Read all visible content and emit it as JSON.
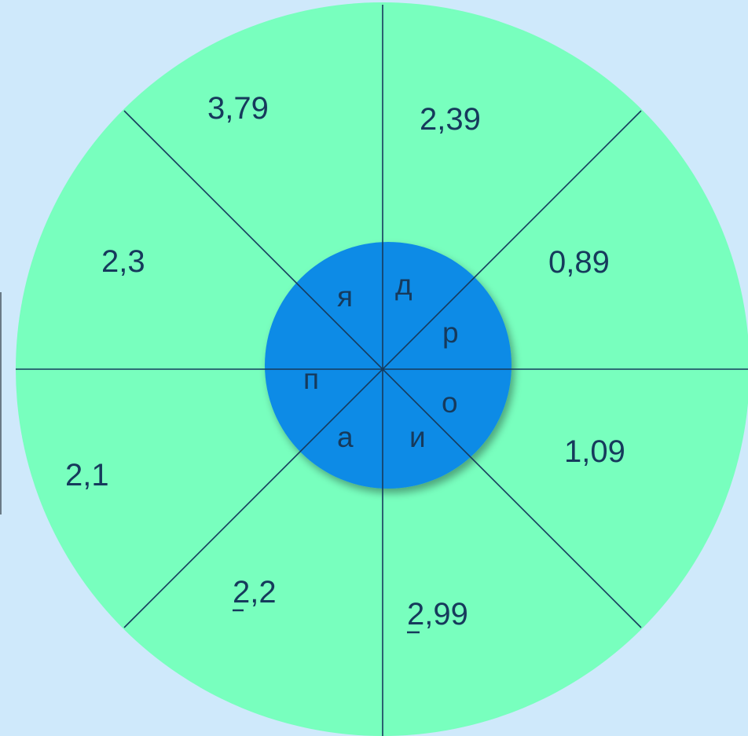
{
  "wheel": {
    "colors": {
      "background": "#cfe9fb",
      "outer_fill": "#78ffbe",
      "inner_fill": "#0b8be6",
      "lines": "#163a5c"
    },
    "outer_values": [
      {
        "id": "top-left",
        "text": "3,79",
        "marked": false
      },
      {
        "id": "top-right",
        "text": "2,39",
        "marked": false
      },
      {
        "id": "right-upper",
        "text": "0,89",
        "marked": false
      },
      {
        "id": "right-lower",
        "text": "1,09",
        "marked": false
      },
      {
        "id": "bottom-right",
        "text": "2,99",
        "marked": true
      },
      {
        "id": "bottom-left",
        "text": "2,2",
        "marked": true
      },
      {
        "id": "left-lower",
        "text": "2,1",
        "marked": false
      },
      {
        "id": "left-upper",
        "text": "2,3",
        "marked": false
      }
    ],
    "inner_letters": [
      {
        "id": "top-right",
        "text": "д"
      },
      {
        "id": "right-upper",
        "text": "р"
      },
      {
        "id": "right-lower",
        "text": "о"
      },
      {
        "id": "bottom-right",
        "text": "и"
      },
      {
        "id": "bottom-left",
        "text": "а"
      },
      {
        "id": "left-lower",
        "text": ""
      },
      {
        "id": "left-upper",
        "text": "п"
      },
      {
        "id": "top-left",
        "text": "я"
      }
    ]
  }
}
